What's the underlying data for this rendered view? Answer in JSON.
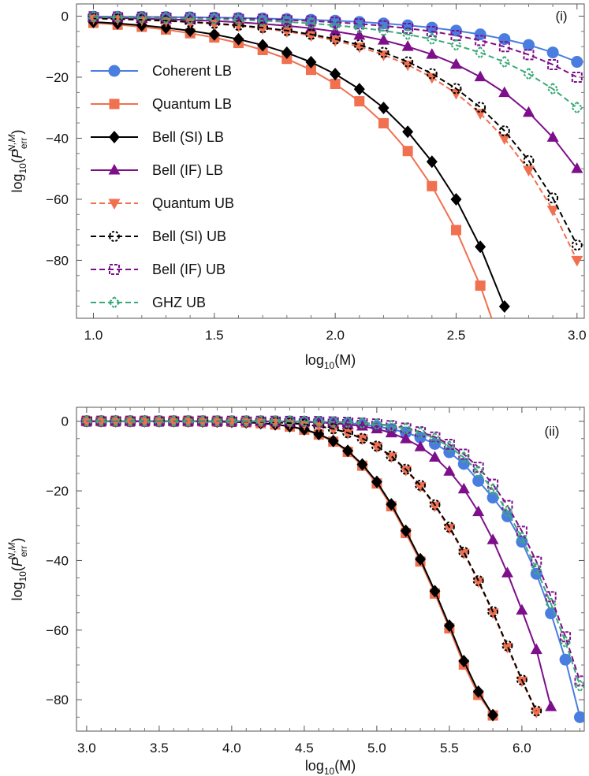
{
  "chart_data": [
    {
      "type": "line",
      "panel_label": "(i)",
      "xlabel": "log10(M)",
      "ylabel": "log10(P_err^{N,M})",
      "xlim": [
        0.93,
        3.03
      ],
      "ylim": [
        -99,
        4
      ],
      "xticks": [
        1.0,
        1.5,
        2.0,
        2.5,
        3.0
      ],
      "yticks": [
        0,
        -20,
        -40,
        -60,
        -80
      ],
      "legend_position": "left",
      "series": [
        {
          "name": "Coherent LB",
          "color": "#4a7de0",
          "marker": "circle",
          "dash": "solid",
          "x": [
            1.0,
            1.1,
            1.2,
            1.3,
            1.4,
            1.5,
            1.6,
            1.7,
            1.8,
            1.9,
            2.0,
            2.1,
            2.2,
            2.3,
            2.4,
            2.5,
            2.6,
            2.7,
            2.8,
            2.9,
            3.0
          ],
          "y": [
            -0.15,
            -0.19,
            -0.24,
            -0.3,
            -0.38,
            -0.47,
            -0.6,
            -0.75,
            -0.95,
            -1.19,
            -1.5,
            -1.89,
            -2.38,
            -2.99,
            -3.77,
            -4.74,
            -5.97,
            -7.51,
            -9.45,
            -11.9,
            -14.98
          ]
        },
        {
          "name": "Quantum LB",
          "color": "#f07050",
          "marker": "square",
          "dash": "solid",
          "x": [
            1.0,
            1.1,
            1.2,
            1.3,
            1.4,
            1.5,
            1.6,
            1.7,
            1.8,
            1.9,
            2.0,
            2.1,
            2.2,
            2.3,
            2.4,
            2.5,
            2.6,
            2.7
          ],
          "y": [
            -2.2,
            -2.8,
            -3.5,
            -4.4,
            -5.6,
            -7.0,
            -8.8,
            -11.1,
            -14.0,
            -17.6,
            -22.2,
            -27.9,
            -35.1,
            -44.2,
            -55.7,
            -70.1,
            -88.3,
            -111.1
          ]
        },
        {
          "name": "Bell (SI) LB",
          "color": "#000000",
          "marker": "diamond",
          "dash": "solid",
          "x": [
            1.0,
            1.1,
            1.2,
            1.3,
            1.4,
            1.5,
            1.6,
            1.7,
            1.8,
            1.9,
            2.0,
            2.1,
            2.2,
            2.3,
            2.4,
            2.5,
            2.6,
            2.7
          ],
          "y": [
            -1.9,
            -2.39,
            -3.0,
            -3.79,
            -4.77,
            -6.0,
            -7.56,
            -9.51,
            -11.98,
            -15.08,
            -18.98,
            -23.9,
            -30.08,
            -37.88,
            -47.68,
            -60.02,
            -75.57,
            -95.13
          ]
        },
        {
          "name": "Bell (IF) LB",
          "color": "#7d0f8a",
          "marker": "triangle",
          "dash": "solid",
          "x": [
            1.0,
            1.1,
            1.2,
            1.3,
            1.4,
            1.5,
            1.6,
            1.7,
            1.8,
            1.9,
            2.0,
            2.1,
            2.2,
            2.3,
            2.4,
            2.5,
            2.6,
            2.7,
            2.8,
            2.9,
            3.0
          ],
          "y": [
            -0.5,
            -0.63,
            -0.79,
            -1.0,
            -1.26,
            -1.58,
            -1.99,
            -2.5,
            -3.15,
            -3.97,
            -5.0,
            -6.29,
            -7.92,
            -9.98,
            -12.56,
            -15.81,
            -19.91,
            -25.06,
            -31.55,
            -39.72,
            -50.0
          ]
        },
        {
          "name": "Quantum UB",
          "color": "#f07050",
          "marker": "triangle-down",
          "dash": "dashed",
          "x": [
            1.0,
            1.1,
            1.2,
            1.3,
            1.4,
            1.5,
            1.6,
            1.7,
            1.8,
            1.9,
            2.0,
            2.1,
            2.2,
            2.3,
            2.4,
            2.5,
            2.6,
            2.7,
            2.8,
            2.9,
            3.0
          ],
          "y": [
            -0.8,
            -1.01,
            -1.27,
            -1.6,
            -2.01,
            -2.53,
            -3.18,
            -4.01,
            -5.04,
            -6.35,
            -8.0,
            -10.07,
            -12.68,
            -15.96,
            -20.09,
            -25.3,
            -31.85,
            -40.1,
            -50.48,
            -63.55,
            -80.0
          ]
        },
        {
          "name": "Bell (SI) UB",
          "color": "#000000",
          "marker": "circle-open",
          "dash": "dashed",
          "x": [
            1.0,
            1.1,
            1.2,
            1.3,
            1.4,
            1.5,
            1.6,
            1.7,
            1.8,
            1.9,
            2.0,
            2.1,
            2.2,
            2.3,
            2.4,
            2.5,
            2.6,
            2.7,
            2.8,
            2.9,
            3.0
          ],
          "y": [
            -0.75,
            -0.94,
            -1.19,
            -1.5,
            -1.88,
            -2.37,
            -2.99,
            -3.76,
            -4.73,
            -5.96,
            -7.5,
            -9.44,
            -11.89,
            -14.96,
            -18.84,
            -23.72,
            -29.86,
            -37.59,
            -47.32,
            -59.58,
            -75.0
          ]
        },
        {
          "name": "Bell (IF) UB",
          "color": "#7d0f8a",
          "marker": "square-open",
          "dash": "dashed",
          "x": [
            1.0,
            1.1,
            1.2,
            1.3,
            1.4,
            1.5,
            1.6,
            1.7,
            1.8,
            1.9,
            2.0,
            2.1,
            2.2,
            2.3,
            2.4,
            2.5,
            2.6,
            2.7,
            2.8,
            2.9,
            3.0
          ],
          "y": [
            -0.2,
            -0.25,
            -0.32,
            -0.4,
            -0.5,
            -0.63,
            -0.8,
            -1.0,
            -1.26,
            -1.59,
            -2.0,
            -2.52,
            -3.17,
            -3.99,
            -5.02,
            -6.32,
            -7.96,
            -10.02,
            -12.62,
            -15.89,
            -20.0
          ]
        },
        {
          "name": "GHZ UB",
          "color": "#3aaa78",
          "marker": "diamond-open",
          "dash": "dashed",
          "x": [
            1.0,
            1.1,
            1.2,
            1.3,
            1.4,
            1.5,
            1.6,
            1.7,
            1.8,
            1.9,
            2.0,
            2.1,
            2.2,
            2.3,
            2.4,
            2.5,
            2.6,
            2.7,
            2.8,
            2.9,
            3.0
          ],
          "y": [
            -0.3,
            -0.38,
            -0.48,
            -0.6,
            -0.76,
            -0.95,
            -1.2,
            -1.5,
            -1.89,
            -2.38,
            -3.0,
            -3.78,
            -4.75,
            -5.99,
            -7.53,
            -9.49,
            -11.94,
            -15.03,
            -18.93,
            -23.83,
            -30.0
          ]
        }
      ]
    },
    {
      "type": "line",
      "panel_label": "(ii)",
      "xlabel": "log10(M)",
      "ylabel": "log10(P_err^{N,M})",
      "xlim": [
        2.93,
        6.43
      ],
      "ylim": [
        -89,
        4
      ],
      "xticks": [
        3.0,
        3.5,
        4.0,
        4.5,
        5.0,
        5.5,
        6.0
      ],
      "yticks": [
        0,
        -20,
        -40,
        -60,
        -80
      ],
      "legend_position": "none",
      "series": [
        {
          "name": "Coherent LB",
          "color": "#4a7de0",
          "marker": "circle",
          "dash": "solid",
          "x": [
            3.0,
            3.1,
            3.2,
            3.3,
            3.4,
            3.5,
            3.6,
            3.7,
            3.8,
            3.9,
            4.0,
            4.1,
            4.2,
            4.3,
            4.4,
            4.5,
            4.6,
            4.7,
            4.8,
            4.9,
            5.0,
            5.1,
            5.2,
            5.3,
            5.4,
            5.5,
            5.6,
            5.7,
            5.8,
            5.9,
            6.0,
            6.1,
            6.2,
            6.3,
            6.4
          ],
          "y": [
            -0.0,
            -0.0,
            -0.0,
            -0.0,
            -0.0,
            -0.0,
            -0.0,
            -0.0,
            -0.0,
            -0.01,
            -0.01,
            -0.02,
            -0.03,
            -0.05,
            -0.08,
            -0.14,
            -0.22,
            -0.34,
            -0.57,
            -0.93,
            -1.46,
            -2.24,
            -3.24,
            -4.67,
            -6.51,
            -8.91,
            -12.26,
            -17.14,
            -21.95,
            -27.32,
            -34.62,
            -43.82,
            -55.18,
            -68.47,
            -85.0
          ]
        },
        {
          "name": "Quantum LB",
          "color": "#f07050",
          "marker": "square",
          "dash": "solid",
          "x": [
            3.0,
            3.1,
            3.2,
            3.3,
            3.4,
            3.5,
            3.6,
            3.7,
            3.8,
            3.9,
            4.0,
            4.1,
            4.2,
            4.3,
            4.4,
            4.5,
            4.6,
            4.7,
            4.8,
            4.9,
            5.0,
            5.1,
            5.2,
            5.3,
            5.4,
            5.5,
            5.6,
            5.7,
            5.8
          ],
          "y": [
            -0.01,
            -0.01,
            -0.01,
            -0.01,
            -0.01,
            -0.02,
            -0.03,
            -0.05,
            -0.08,
            -0.13,
            -0.21,
            -0.35,
            -0.57,
            -0.94,
            -1.52,
            -2.43,
            -3.82,
            -5.86,
            -8.78,
            -12.78,
            -17.89,
            -24.43,
            -32.11,
            -40.3,
            -49.5,
            -59.5,
            -69.9,
            -78.6,
            -84.5
          ]
        },
        {
          "name": "Bell (SI) LB",
          "color": "#000000",
          "marker": "diamond",
          "dash": "solid",
          "x": [
            3.0,
            3.1,
            3.2,
            3.3,
            3.4,
            3.5,
            3.6,
            3.7,
            3.8,
            3.9,
            4.0,
            4.1,
            4.2,
            4.3,
            4.4,
            4.5,
            4.6,
            4.7,
            4.8,
            4.9,
            5.0,
            5.1,
            5.2,
            5.3,
            5.4,
            5.5,
            5.6,
            5.7,
            5.8
          ],
          "y": [
            -0.0,
            -0.0,
            -0.01,
            -0.01,
            -0.01,
            -0.02,
            -0.03,
            -0.05,
            -0.07,
            -0.12,
            -0.2,
            -0.33,
            -0.55,
            -0.9,
            -1.45,
            -2.33,
            -3.68,
            -5.66,
            -8.5,
            -12.4,
            -17.41,
            -23.85,
            -31.46,
            -39.62,
            -48.8,
            -58.7,
            -68.9,
            -77.7,
            -84.4
          ]
        },
        {
          "name": "Bell (IF) LB",
          "color": "#7d0f8a",
          "marker": "triangle",
          "dash": "solid",
          "x": [
            3.0,
            3.1,
            3.2,
            3.3,
            3.4,
            3.5,
            3.6,
            3.7,
            3.8,
            3.9,
            4.0,
            4.1,
            4.2,
            4.3,
            4.4,
            4.5,
            4.6,
            4.7,
            4.8,
            4.9,
            5.0,
            5.1,
            5.2,
            5.3,
            5.4,
            5.5,
            5.6,
            5.7,
            5.8,
            5.9,
            6.0,
            6.1,
            6.2
          ],
          "y": [
            -0.0,
            -0.0,
            -0.0,
            -0.0,
            -0.0,
            -0.0,
            -0.0,
            -0.01,
            -0.01,
            -0.01,
            -0.02,
            -0.03,
            -0.05,
            -0.08,
            -0.13,
            -0.22,
            -0.35,
            -0.56,
            -0.9,
            -1.42,
            -2.21,
            -3.38,
            -5.07,
            -7.37,
            -10.38,
            -14.38,
            -19.48,
            -26.0,
            -34.06,
            -43.6,
            -54.3,
            -65.6,
            -82.0
          ]
        },
        {
          "name": "Quantum UB",
          "color": "#f07050",
          "marker": "triangle-down",
          "dash": "dashed",
          "x": [
            3.0,
            3.1,
            3.2,
            3.3,
            3.4,
            3.5,
            3.6,
            3.7,
            3.8,
            3.9,
            4.0,
            4.1,
            4.2,
            4.3,
            4.4,
            4.5,
            4.6,
            4.7,
            4.8,
            4.9,
            5.0,
            5.1,
            5.2,
            5.3,
            5.4,
            5.5,
            5.6,
            5.7,
            5.8,
            5.9,
            6.0,
            6.1
          ],
          "y": [
            -0.0,
            -0.0,
            -0.0,
            -0.0,
            -0.01,
            -0.01,
            -0.01,
            -0.02,
            -0.03,
            -0.05,
            -0.08,
            -0.13,
            -0.22,
            -0.35,
            -0.57,
            -0.91,
            -1.44,
            -2.24,
            -3.4,
            -5.05,
            -7.29,
            -10.2,
            -14.04,
            -18.7,
            -24.3,
            -30.7,
            -37.9,
            -46.1,
            -55.0,
            -64.9,
            -74.6,
            -83.5
          ]
        },
        {
          "name": "Bell (SI) UB",
          "color": "#000000",
          "marker": "circle-open",
          "dash": "dashed",
          "x": [
            3.0,
            3.1,
            3.2,
            3.3,
            3.4,
            3.5,
            3.6,
            3.7,
            3.8,
            3.9,
            4.0,
            4.1,
            4.2,
            4.3,
            4.4,
            4.5,
            4.6,
            4.7,
            4.8,
            4.9,
            5.0,
            5.1,
            5.2,
            5.3,
            5.4,
            5.5,
            5.6,
            5.7,
            5.8,
            5.9,
            6.0,
            6.1
          ],
          "y": [
            -0.0,
            -0.0,
            -0.0,
            -0.0,
            -0.01,
            -0.01,
            -0.01,
            -0.02,
            -0.03,
            -0.05,
            -0.08,
            -0.13,
            -0.21,
            -0.34,
            -0.55,
            -0.88,
            -1.4,
            -2.18,
            -3.31,
            -4.94,
            -7.14,
            -10.01,
            -13.8,
            -18.4,
            -24.0,
            -30.4,
            -37.6,
            -45.8,
            -54.7,
            -64.5,
            -74.3,
            -83.2
          ]
        },
        {
          "name": "Bell (IF) UB",
          "color": "#7d0f8a",
          "marker": "square-open",
          "dash": "dashed",
          "x": [
            3.0,
            3.1,
            3.2,
            3.3,
            3.4,
            3.5,
            3.6,
            3.7,
            3.8,
            3.9,
            4.0,
            4.1,
            4.2,
            4.3,
            4.4,
            4.5,
            4.6,
            4.7,
            4.8,
            4.9,
            5.0,
            5.1,
            5.2,
            5.3,
            5.4,
            5.5,
            5.6,
            5.7,
            5.8,
            5.9,
            6.0,
            6.1,
            6.2,
            6.3,
            6.4
          ],
          "y": [
            -0.0,
            -0.0,
            -0.0,
            -0.0,
            -0.0,
            -0.0,
            -0.0,
            -0.0,
            -0.0,
            -0.0,
            -0.01,
            -0.01,
            -0.02,
            -0.03,
            -0.04,
            -0.07,
            -0.11,
            -0.18,
            -0.3,
            -0.49,
            -0.79,
            -1.26,
            -1.97,
            -3.03,
            -4.53,
            -6.63,
            -9.46,
            -13.22,
            -18.1,
            -24.2,
            -31.6,
            -40.3,
            -50.4,
            -61.9,
            -74.6
          ]
        },
        {
          "name": "GHZ UB",
          "color": "#3aaa78",
          "marker": "diamond-open",
          "dash": "dashed",
          "x": [
            3.0,
            3.1,
            3.2,
            3.3,
            3.4,
            3.5,
            3.6,
            3.7,
            3.8,
            3.9,
            4.0,
            4.1,
            4.2,
            4.3,
            4.4,
            4.5,
            4.6,
            4.7,
            4.8,
            4.9,
            5.0,
            5.1,
            5.2,
            5.3,
            5.4,
            5.5,
            5.6,
            5.7,
            5.8,
            5.9,
            6.0,
            6.1,
            6.2,
            6.3,
            6.4
          ],
          "y": [
            -0.0,
            -0.0,
            -0.0,
            -0.0,
            -0.0,
            -0.0,
            -0.0,
            -0.0,
            -0.0,
            -0.0,
            -0.01,
            -0.01,
            -0.02,
            -0.03,
            -0.05,
            -0.08,
            -0.13,
            -0.21,
            -0.34,
            -0.55,
            -0.88,
            -1.39,
            -2.16,
            -3.31,
            -4.98,
            -7.3,
            -10.41,
            -14.5,
            -19.6,
            -25.9,
            -33.5,
            -42.4,
            -52.4,
            -63.4,
            -76.0
          ]
        }
      ]
    }
  ]
}
